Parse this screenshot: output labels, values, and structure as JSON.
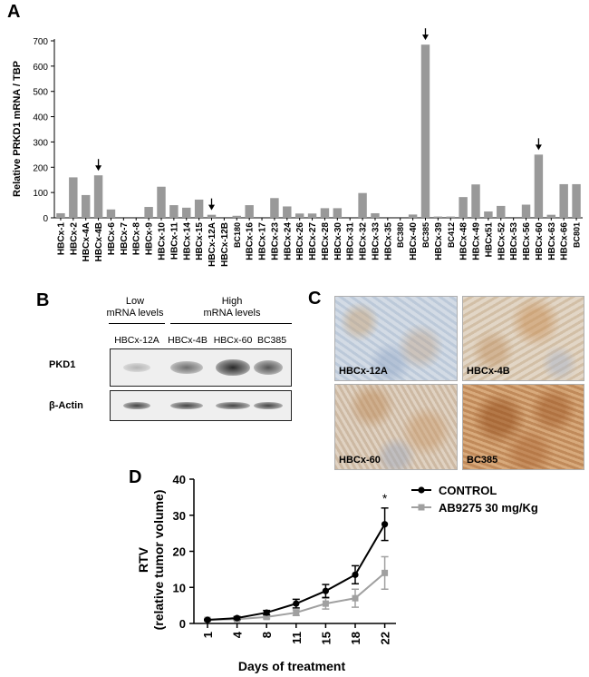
{
  "panels": {
    "a": "A",
    "b": "B",
    "c": "C",
    "d": "D"
  },
  "panel_b": {
    "group_low": [
      "Low",
      "mRNA levels"
    ],
    "group_high": [
      "High",
      "mRNA levels"
    ],
    "lanes": [
      "HBCx-12A",
      "HBCx-4B",
      "HBCx-60",
      "BC385"
    ],
    "row_pkd1": "PKD1",
    "row_actin": "β-Actin",
    "pkd1_intensity": [
      0.15,
      0.55,
      0.95,
      0.7
    ],
    "actin_intensity": [
      0.8,
      0.8,
      0.8,
      0.8
    ]
  },
  "panel_c": {
    "tiles": [
      {
        "label": "HBCx-12A",
        "stain": "low"
      },
      {
        "label": "HBCx-4B",
        "stain": "moderate"
      },
      {
        "label": "HBCx-60",
        "stain": "moderate"
      },
      {
        "label": "BC385",
        "stain": "high"
      }
    ]
  },
  "chart_data": [
    {
      "type": "bar",
      "ylabel": "Relative PRKD1 mRNA / TBP",
      "ylim": [
        0,
        700
      ],
      "yticks": [
        0,
        100,
        200,
        300,
        400,
        500,
        600,
        700
      ],
      "bar_color": "#999999",
      "categories": [
        "HBCx-1",
        "HBCx-2",
        "HBCx-4A",
        "HBCx-4B",
        "HBCx-6",
        "HBCx-7",
        "HBCx-8",
        "HBCx-9",
        "HBCx-10",
        "HBCx-11",
        "HBCx-14",
        "HBCx-15",
        "HBCx-12A",
        "HBCx-12B",
        "BC180",
        "HBCx-16",
        "HBCx-17",
        "HBCx-23",
        "HBCx-24",
        "HBCx-26",
        "HBCx-27",
        "HBCx-28",
        "HBCx-30",
        "HBCx-31",
        "HBCx-32",
        "HBCx-33",
        "HBCx-35",
        "BC380",
        "HBCx-40",
        "BC385",
        "HBCx-39",
        "BC412",
        "HBCx-48",
        "HBCx-49",
        "HBCx51",
        "HBCx-52",
        "HBCx-53",
        "HBCx-56",
        "HBCx-60",
        "HBCx-63",
        "HBCx-66",
        "BC801"
      ],
      "values": [
        18,
        160,
        90,
        168,
        33,
        0,
        0,
        43,
        123,
        50,
        40,
        72,
        12,
        0,
        8,
        50,
        0,
        78,
        45,
        17,
        17,
        38,
        38,
        0,
        98,
        18,
        0,
        0,
        13,
        685,
        5,
        5,
        82,
        132,
        25,
        47,
        0,
        52,
        250,
        12,
        133,
        133
      ],
      "arrows": [
        "HBCx-4B",
        "HBCx-12A",
        "BC385",
        "HBCx-60"
      ]
    },
    {
      "type": "line",
      "xlabel": "Days of treatment",
      "ylabel": "RTV\n(relative tumor volume)",
      "x": [
        1,
        4,
        8,
        11,
        15,
        18,
        22
      ],
      "ylim": [
        0,
        40
      ],
      "yticks": [
        0,
        10,
        20,
        30,
        40
      ],
      "series": [
        {
          "name": "CONTROL",
          "color": "#000000",
          "marker": "circle",
          "values": [
            1,
            1.5,
            3,
            5.5,
            9,
            13.5,
            27.5
          ],
          "errors": [
            0.2,
            0.4,
            0.6,
            1.2,
            1.8,
            2.5,
            4.5
          ]
        },
        {
          "name": "AB9275 30 mg/Kg",
          "color": "#a0a0a0",
          "marker": "square",
          "values": [
            1,
            1.2,
            1.8,
            3,
            5.5,
            7,
            14
          ],
          "errors": [
            0.2,
            0.3,
            0.5,
            0.8,
            1.5,
            2.5,
            4.5
          ]
        }
      ],
      "annotation": {
        "x": 22,
        "text": "*"
      }
    }
  ]
}
